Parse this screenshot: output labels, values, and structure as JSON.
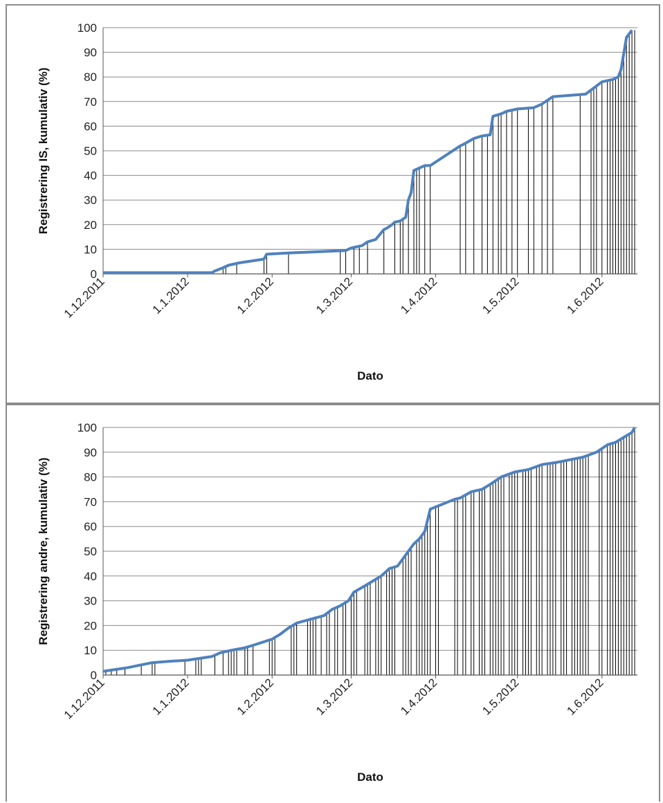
{
  "chart_data": [
    {
      "type": "line",
      "title": "",
      "xlabel": "Dato",
      "ylabel": "Registrering IS, kumulativ (%)",
      "ylim": [
        0,
        100
      ],
      "yticks": [
        "0",
        "10",
        "20",
        "30",
        "40",
        "50",
        "60",
        "70",
        "80",
        "90",
        "100"
      ],
      "xticks": [
        "1.12.2011",
        "1.1.2012",
        "1.2.2012",
        "1.3.2012",
        "1.4.2012",
        "1.5.2012",
        "1.6.2012"
      ],
      "xlim": [
        "2011-12-01",
        "2012-06-14"
      ],
      "grid": true,
      "series": [
        {
          "color": "#4f81bd",
          "x": [
            "2011-12-01",
            "2012-01-10",
            "2012-01-11",
            "2012-01-14",
            "2012-01-16",
            "2012-01-20",
            "2012-01-29",
            "2012-01-30",
            "2012-02-07",
            "2012-02-28",
            "2012-03-01",
            "2012-03-05",
            "2012-03-07",
            "2012-03-10",
            "2012-03-13",
            "2012-03-14",
            "2012-03-16",
            "2012-03-17",
            "2012-03-19",
            "2012-03-21",
            "2012-03-22",
            "2012-03-23",
            "2012-03-24",
            "2012-03-28",
            "2012-03-30",
            "2012-04-10",
            "2012-04-11",
            "2012-04-15",
            "2012-04-18",
            "2012-04-21",
            "2012-04-22",
            "2012-04-25",
            "2012-04-27",
            "2012-05-01",
            "2012-05-07",
            "2012-05-10",
            "2012-05-14",
            "2012-05-26",
            "2012-06-01",
            "2012-06-05",
            "2012-06-07",
            "2012-06-08",
            "2012-06-10",
            "2012-06-12"
          ],
          "y": [
            0.5,
            0.5,
            1.2,
            2.5,
            3.5,
            4.5,
            6,
            8,
            8.5,
            9.5,
            10.5,
            11.5,
            13,
            14,
            18,
            18.5,
            20,
            21,
            21.5,
            23,
            30,
            33,
            42,
            44,
            44,
            52,
            52.5,
            55,
            56,
            56.5,
            64,
            65,
            66,
            67,
            67.5,
            69,
            72,
            73,
            78,
            79,
            80,
            83,
            96,
            99
          ]
        }
      ],
      "registrations": [
        "2012-01-10",
        "2012-01-14",
        "2012-01-15",
        "2012-01-19",
        "2012-01-29",
        "2012-01-30",
        "2012-02-07",
        "2012-02-26",
        "2012-02-28",
        "2012-03-02",
        "2012-03-04",
        "2012-03-07",
        "2012-03-13",
        "2012-03-17",
        "2012-03-19",
        "2012-03-20",
        "2012-03-22",
        "2012-03-24",
        "2012-03-25",
        "2012-03-26",
        "2012-03-28",
        "2012-03-30",
        "2012-04-10",
        "2012-04-12",
        "2012-04-15",
        "2012-04-18",
        "2012-04-20",
        "2012-04-22",
        "2012-04-24",
        "2012-04-25",
        "2012-04-27",
        "2012-04-29",
        "2012-05-01",
        "2012-05-05",
        "2012-05-07",
        "2012-05-10",
        "2012-05-12",
        "2012-05-14",
        "2012-05-24",
        "2012-05-28",
        "2012-05-29",
        "2012-05-30",
        "2012-06-01",
        "2012-06-03",
        "2012-06-04",
        "2012-06-05",
        "2012-06-06",
        "2012-06-07",
        "2012-06-08",
        "2012-06-09",
        "2012-06-10",
        "2012-06-11",
        "2012-06-12",
        "2012-06-13"
      ]
    },
    {
      "type": "line",
      "title": "",
      "xlabel": "Dato",
      "ylabel": "Registrering andre, kumulativ (%)",
      "ylim": [
        0,
        100
      ],
      "yticks": [
        "0",
        "10",
        "20",
        "30",
        "40",
        "50",
        "60",
        "70",
        "80",
        "90",
        "100"
      ],
      "xticks": [
        "1.12.2011",
        "1.1.2012",
        "1.2.2012",
        "1.3.2012",
        "1.4.2012",
        "1.5.2012",
        "1.6.2012"
      ],
      "xlim": [
        "2011-12-01",
        "2012-06-14"
      ],
      "grid": true,
      "series": [
        {
          "color": "#4f81bd",
          "x": [
            "2011-12-01",
            "2011-12-07",
            "2011-12-10",
            "2011-12-19",
            "2011-12-25",
            "2012-01-01",
            "2012-01-10",
            "2012-01-13",
            "2012-01-17",
            "2012-01-22",
            "2012-01-25",
            "2012-02-01",
            "2012-02-04",
            "2012-02-07",
            "2012-02-10",
            "2012-02-15",
            "2012-02-20",
            "2012-02-23",
            "2012-02-26",
            "2012-02-29",
            "2012-03-02",
            "2012-03-06",
            "2012-03-09",
            "2012-03-12",
            "2012-03-15",
            "2012-03-18",
            "2012-03-22",
            "2012-03-24",
            "2012-03-26",
            "2012-03-28",
            "2012-03-30",
            "2012-04-08",
            "2012-04-10",
            "2012-04-14",
            "2012-04-18",
            "2012-04-21",
            "2012-04-25",
            "2012-04-30",
            "2012-05-05",
            "2012-05-10",
            "2012-05-16",
            "2012-05-25",
            "2012-05-30",
            "2012-06-03",
            "2012-06-06",
            "2012-06-09",
            "2012-06-12",
            "2012-06-13"
          ],
          "y": [
            1.5,
            2.5,
            3,
            5,
            5.5,
            6,
            7.5,
            9,
            10,
            11,
            12,
            14.5,
            16.5,
            19,
            21,
            22.5,
            24,
            26.5,
            28,
            30,
            33.5,
            36,
            38,
            40,
            43,
            44,
            50,
            53,
            55,
            58,
            67,
            71,
            71.5,
            74,
            75,
            77,
            80,
            82,
            83,
            85,
            86,
            88,
            90,
            93,
            94,
            96,
            98,
            100
          ]
        }
      ],
      "registrations": [
        "2011-12-02",
        "2011-12-04",
        "2011-12-06",
        "2011-12-09",
        "2011-12-15",
        "2011-12-19",
        "2011-12-20",
        "2011-12-31",
        "2012-01-04",
        "2012-01-05",
        "2012-01-06",
        "2012-01-11",
        "2012-01-14",
        "2012-01-16",
        "2012-01-17",
        "2012-01-18",
        "2012-01-19",
        "2012-01-22",
        "2012-01-23",
        "2012-01-25",
        "2012-01-31",
        "2012-02-01",
        "2012-02-02",
        "2012-02-08",
        "2012-02-09",
        "2012-02-10",
        "2012-02-14",
        "2012-02-15",
        "2012-02-16",
        "2012-02-17",
        "2012-02-19",
        "2012-02-21",
        "2012-02-22",
        "2012-02-24",
        "2012-02-25",
        "2012-02-27",
        "2012-02-28",
        "2012-03-01",
        "2012-03-02",
        "2012-03-03",
        "2012-03-06",
        "2012-03-07",
        "2012-03-08",
        "2012-03-10",
        "2012-03-11",
        "2012-03-12",
        "2012-03-14",
        "2012-03-15",
        "2012-03-16",
        "2012-03-17",
        "2012-03-20",
        "2012-03-21",
        "2012-03-22",
        "2012-03-23",
        "2012-03-25",
        "2012-03-26",
        "2012-03-27",
        "2012-03-28",
        "2012-03-29",
        "2012-03-30",
        "2012-04-01",
        "2012-04-02",
        "2012-04-08",
        "2012-04-09",
        "2012-04-11",
        "2012-04-12",
        "2012-04-14",
        "2012-04-15",
        "2012-04-17",
        "2012-04-18",
        "2012-04-19",
        "2012-04-21",
        "2012-04-22",
        "2012-04-23",
        "2012-04-24",
        "2012-04-25",
        "2012-04-26",
        "2012-04-28",
        "2012-04-29",
        "2012-04-30",
        "2012-05-01",
        "2012-05-03",
        "2012-05-04",
        "2012-05-05",
        "2012-05-06",
        "2012-05-08",
        "2012-05-09",
        "2012-05-10",
        "2012-05-12",
        "2012-05-13",
        "2012-05-14",
        "2012-05-15",
        "2012-05-17",
        "2012-05-18",
        "2012-05-19",
        "2012-05-21",
        "2012-05-22",
        "2012-05-23",
        "2012-05-24",
        "2012-05-25",
        "2012-05-26",
        "2012-05-27",
        "2012-05-31",
        "2012-06-01",
        "2012-06-03",
        "2012-06-04",
        "2012-06-05",
        "2012-06-06",
        "2012-06-07",
        "2012-06-08",
        "2012-06-09",
        "2012-06-10",
        "2012-06-11",
        "2012-06-12",
        "2012-06-13"
      ]
    }
  ]
}
